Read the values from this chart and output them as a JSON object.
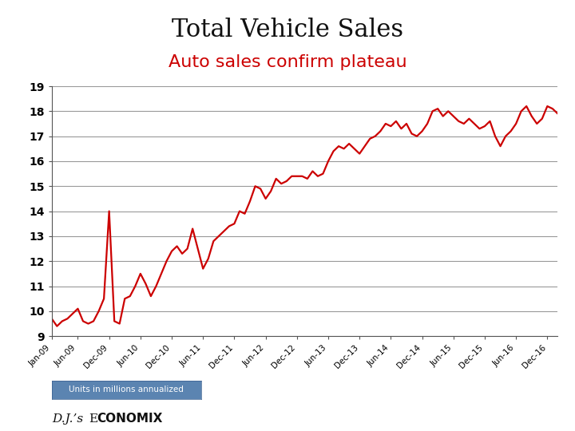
{
  "title": "Total Vehicle Sales",
  "subtitle": "Auto sales confirm plateau",
  "ylabel_note": "Units in millions annualized",
  "title_fontsize": 22,
  "subtitle_fontsize": 16,
  "line_color": "#CC0000",
  "line_width": 1.6,
  "ylim": [
    9,
    19
  ],
  "yticks": [
    9,
    10,
    11,
    12,
    13,
    14,
    15,
    16,
    17,
    18,
    19
  ],
  "xtick_labels": [
    "Jan-09",
    "Jun-09",
    "Dec-09",
    "Jun-10",
    "Dec-10",
    "Jun-11",
    "Dec-11",
    "Jun-12",
    "Dec-12",
    "Jun-13",
    "Dec-13",
    "Jun-14",
    "Dec-14",
    "Jun-15",
    "Dec-15",
    "Jun-16",
    "Dec-16"
  ],
  "background_color": "#ffffff",
  "note_box_color": "#5B84B1",
  "note_text_color": "#ffffff",
  "values": [
    9.7,
    9.4,
    9.6,
    9.7,
    9.9,
    10.1,
    9.6,
    9.5,
    9.6,
    10.0,
    10.5,
    14.0,
    9.6,
    9.5,
    10.5,
    10.6,
    11.0,
    11.5,
    11.1,
    10.6,
    11.0,
    11.5,
    12.0,
    12.4,
    12.6,
    12.3,
    12.5,
    13.3,
    12.5,
    11.7,
    12.1,
    12.8,
    13.0,
    13.2,
    13.4,
    13.5,
    14.0,
    13.9,
    14.4,
    15.0,
    14.9,
    14.5,
    14.8,
    15.3,
    15.1,
    15.2,
    15.4,
    15.4,
    15.4,
    15.3,
    15.6,
    15.4,
    15.5,
    16.0,
    16.4,
    16.6,
    16.5,
    16.7,
    16.5,
    16.3,
    16.6,
    16.9,
    17.0,
    17.2,
    17.5,
    17.4,
    17.6,
    17.3,
    17.5,
    17.1,
    17.0,
    17.2,
    17.5,
    18.0,
    18.1,
    17.8,
    18.0,
    17.8,
    17.6,
    17.5,
    17.7,
    17.5,
    17.3,
    17.4,
    17.6,
    17.0,
    16.6,
    17.0,
    17.2,
    17.5,
    18.0,
    18.2,
    17.8,
    17.5,
    17.7,
    18.2,
    18.1,
    17.9
  ]
}
